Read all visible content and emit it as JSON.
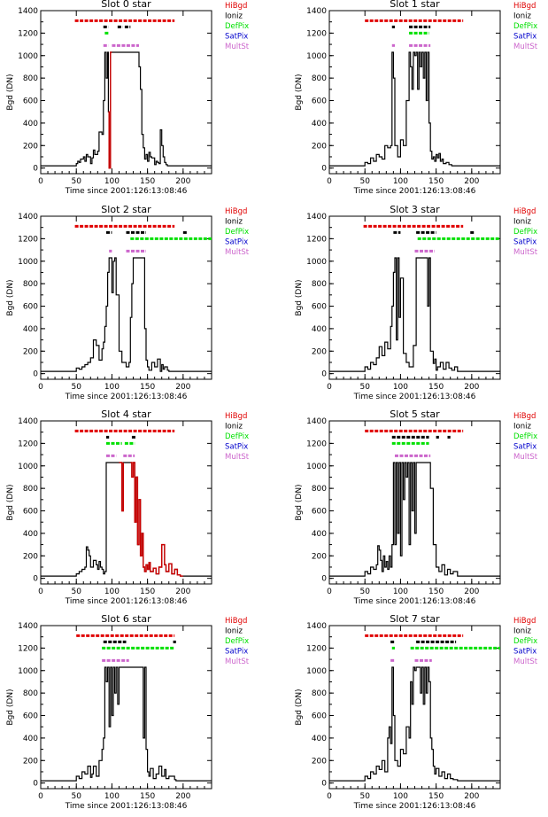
{
  "colors": {
    "HiBgd": "#e00000",
    "Ioniz": "#000000",
    "DefPix": "#00e000",
    "SatPix": "#0000cc",
    "MultSt": "#cc66cc",
    "trace": "#000000",
    "trace_flag": "#cc0000"
  },
  "legend": [
    "HiBgd",
    "Ioniz",
    "DefPix",
    "SatPix",
    "MultSt"
  ],
  "chart_data": [
    {
      "type": "line",
      "title": "Slot 0 star",
      "xlabel": "Time since 2001:126:13:08:46",
      "ylabel": "Bgd (DN)",
      "xlim": [
        0,
        240
      ],
      "ylim": [
        -50,
        1400
      ],
      "xticks": [
        0,
        50,
        100,
        150,
        200
      ],
      "yticks": [
        0,
        200,
        400,
        600,
        800,
        1000,
        1200,
        1400
      ],
      "x": [
        0,
        48,
        50,
        52,
        54,
        56,
        60,
        62,
        64,
        66,
        70,
        72,
        74,
        76,
        80,
        82,
        86,
        88,
        90,
        92,
        94,
        95,
        96,
        98,
        100,
        102,
        110,
        118,
        122,
        126,
        130,
        134,
        136,
        138,
        140,
        142,
        144,
        146,
        148,
        150,
        152,
        154,
        156,
        160,
        162,
        164,
        166,
        168,
        170,
        172,
        174,
        176,
        178,
        180,
        240
      ],
      "y": [
        20,
        20,
        40,
        60,
        50,
        80,
        100,
        60,
        120,
        100,
        40,
        90,
        160,
        120,
        150,
        320,
        300,
        600,
        1030,
        800,
        1030,
        500,
        0,
        1030,
        1030,
        1030,
        1030,
        1030,
        1030,
        1030,
        1030,
        1030,
        1030,
        900,
        700,
        300,
        180,
        80,
        120,
        60,
        140,
        100,
        90,
        30,
        60,
        50,
        40,
        340,
        200,
        100,
        50,
        30,
        20,
        20,
        20
      ],
      "flag_segments": [
        [
          95,
          100
        ]
      ],
      "flags": {
        "HiBgd": [
          [
            48,
            188
          ]
        ],
        "Ioniz": [
          [
            88,
            95
          ],
          [
            108,
            115
          ],
          [
            118,
            126
          ]
        ],
        "DefPix": [
          [
            90,
            95
          ]
        ],
        "SatPix": [],
        "MultSt": [
          [
            88,
            95
          ],
          [
            100,
            138
          ]
        ]
      }
    },
    {
      "type": "line",
      "title": "Slot 1 star",
      "xlabel": "Time since 2001:126:13:08:46",
      "ylabel": "Bgd (DN)",
      "xlim": [
        0,
        240
      ],
      "ylim": [
        -50,
        1400
      ],
      "xticks": [
        0,
        50,
        100,
        150,
        200
      ],
      "yticks": [
        0,
        200,
        400,
        600,
        800,
        1000,
        1200,
        1400
      ],
      "x": [
        0,
        48,
        50,
        54,
        58,
        62,
        66,
        70,
        74,
        78,
        82,
        86,
        88,
        90,
        92,
        96,
        100,
        104,
        108,
        112,
        114,
        116,
        118,
        120,
        122,
        124,
        126,
        128,
        130,
        132,
        134,
        136,
        138,
        140,
        142,
        144,
        146,
        148,
        150,
        152,
        154,
        156,
        158,
        160,
        164,
        168,
        172,
        176,
        240
      ],
      "y": [
        20,
        20,
        50,
        40,
        90,
        60,
        120,
        100,
        80,
        200,
        180,
        200,
        1030,
        800,
        200,
        100,
        250,
        200,
        600,
        1030,
        900,
        700,
        1030,
        1000,
        1030,
        700,
        1030,
        900,
        1030,
        800,
        1030,
        600,
        1030,
        400,
        150,
        80,
        100,
        60,
        120,
        90,
        130,
        60,
        80,
        40,
        50,
        30,
        20,
        20,
        20
      ],
      "flag_segments": [],
      "flags": {
        "HiBgd": [
          [
            50,
            188
          ]
        ],
        "Ioniz": [
          [
            88,
            92
          ],
          [
            112,
            142
          ]
        ],
        "DefPix": [
          [
            112,
            140
          ]
        ],
        "SatPix": [],
        "MultSt": [
          [
            88,
            92
          ],
          [
            112,
            142
          ]
        ]
      }
    },
    {
      "type": "line",
      "title": "Slot 2 star",
      "xlabel": "Time since 2001:126:13:08:46",
      "ylabel": "Bgd (DN)",
      "xlim": [
        0,
        240
      ],
      "ylim": [
        -50,
        1400
      ],
      "xticks": [
        0,
        50,
        100,
        150,
        200
      ],
      "yticks": [
        0,
        200,
        400,
        600,
        800,
        1000,
        1200,
        1400
      ],
      "x": [
        0,
        46,
        50,
        54,
        58,
        62,
        66,
        70,
        74,
        78,
        82,
        86,
        88,
        90,
        92,
        94,
        96,
        98,
        100,
        102,
        104,
        106,
        110,
        114,
        120,
        124,
        126,
        128,
        130,
        134,
        138,
        142,
        146,
        148,
        150,
        152,
        156,
        160,
        164,
        168,
        170,
        172,
        174,
        178,
        180,
        240
      ],
      "y": [
        20,
        20,
        50,
        40,
        60,
        80,
        100,
        140,
        300,
        250,
        120,
        220,
        280,
        420,
        600,
        900,
        1030,
        1030,
        720,
        1000,
        1030,
        700,
        200,
        100,
        60,
        100,
        500,
        800,
        1030,
        1030,
        1030,
        1030,
        400,
        120,
        60,
        30,
        100,
        60,
        130,
        20,
        80,
        40,
        60,
        30,
        20,
        20
      ],
      "flag_segments": [],
      "flags": {
        "HiBgd": [
          [
            48,
            188
          ]
        ],
        "Ioniz": [
          [
            92,
            100
          ],
          [
            120,
            148
          ],
          [
            200,
            205
          ]
        ],
        "DefPix": [
          [
            126,
            240
          ]
        ],
        "SatPix": [],
        "MultSt": [
          [
            96,
            100
          ],
          [
            120,
            148
          ]
        ]
      }
    },
    {
      "type": "line",
      "title": "Slot 3 star",
      "xlabel": "Time since 2001:126:13:08:46",
      "ylabel": "Bgd (DN)",
      "xlim": [
        0,
        240
      ],
      "ylim": [
        -50,
        1400
      ],
      "xticks": [
        0,
        50,
        100,
        150,
        200
      ],
      "yticks": [
        0,
        200,
        400,
        600,
        800,
        1000,
        1200,
        1400
      ],
      "x": [
        0,
        46,
        50,
        54,
        58,
        62,
        66,
        70,
        74,
        78,
        82,
        86,
        88,
        90,
        92,
        94,
        96,
        98,
        100,
        104,
        108,
        112,
        118,
        122,
        124,
        126,
        130,
        134,
        138,
        140,
        142,
        146,
        148,
        150,
        152,
        156,
        160,
        164,
        168,
        172,
        176,
        180,
        240
      ],
      "y": [
        20,
        20,
        60,
        40,
        100,
        80,
        140,
        240,
        160,
        280,
        220,
        420,
        600,
        900,
        1030,
        300,
        1030,
        500,
        850,
        180,
        100,
        60,
        250,
        1030,
        1030,
        1030,
        1030,
        1030,
        600,
        1030,
        200,
        90,
        130,
        30,
        60,
        100,
        40,
        100,
        50,
        30,
        60,
        20,
        20
      ],
      "flag_segments": [],
      "flags": {
        "HiBgd": [
          [
            48,
            188
          ]
        ],
        "Ioniz": [
          [
            90,
            100
          ],
          [
            122,
            150
          ],
          [
            198,
            203
          ]
        ],
        "DefPix": [
          [
            124,
            240
          ]
        ],
        "SatPix": [],
        "MultSt": [
          [
            120,
            148
          ]
        ]
      }
    },
    {
      "type": "line",
      "title": "Slot 4 star",
      "xlabel": "Time since 2001:126:13:08:46",
      "ylabel": "Bgd (DN)",
      "xlim": [
        0,
        240
      ],
      "ylim": [
        -50,
        1400
      ],
      "xticks": [
        0,
        50,
        100,
        150,
        200
      ],
      "yticks": [
        0,
        200,
        400,
        600,
        800,
        1000,
        1200,
        1400
      ],
      "x": [
        0,
        48,
        50,
        54,
        58,
        62,
        64,
        66,
        68,
        70,
        74,
        78,
        80,
        82,
        84,
        86,
        88,
        90,
        92,
        110,
        112,
        114,
        116,
        120,
        124,
        126,
        128,
        130,
        132,
        134,
        136,
        138,
        140,
        142,
        144,
        146,
        148,
        150,
        152,
        154,
        158,
        162,
        166,
        170,
        174,
        176,
        180,
        184,
        188,
        192,
        196,
        200,
        240
      ],
      "y": [
        20,
        20,
        40,
        60,
        80,
        100,
        280,
        250,
        200,
        100,
        160,
        120,
        80,
        150,
        100,
        80,
        40,
        60,
        1030,
        1030,
        1030,
        600,
        1030,
        1030,
        1030,
        1030,
        900,
        1030,
        500,
        900,
        300,
        700,
        200,
        400,
        100,
        60,
        120,
        80,
        140,
        60,
        90,
        40,
        100,
        300,
        120,
        60,
        130,
        40,
        80,
        30,
        20,
        20,
        20
      ],
      "flag_segments": [
        [
          110,
          118
        ],
        [
          126,
          200
        ]
      ],
      "flags": {
        "HiBgd": [
          [
            48,
            188
          ]
        ],
        "Ioniz": [
          [
            92,
            96
          ],
          [
            128,
            134
          ]
        ],
        "DefPix": [
          [
            92,
            114
          ],
          [
            118,
            132
          ]
        ],
        "SatPix": [],
        "MultSt": [
          [
            92,
            106
          ],
          [
            116,
            132
          ]
        ]
      }
    },
    {
      "type": "line",
      "title": "Slot 5 star",
      "xlabel": "Time since 2001:126:13:08:46",
      "ylabel": "Bgd (DN)",
      "xlim": [
        0,
        240
      ],
      "ylim": [
        -50,
        1400
      ],
      "xticks": [
        0,
        50,
        100,
        150,
        200
      ],
      "yticks": [
        0,
        200,
        400,
        600,
        800,
        1000,
        1200,
        1400
      ],
      "x": [
        0,
        48,
        50,
        54,
        58,
        62,
        66,
        68,
        70,
        72,
        74,
        76,
        78,
        80,
        82,
        84,
        86,
        88,
        90,
        92,
        94,
        96,
        98,
        100,
        102,
        104,
        106,
        108,
        110,
        112,
        114,
        116,
        118,
        120,
        122,
        126,
        130,
        134,
        138,
        140,
        142,
        146,
        150,
        154,
        158,
        162,
        166,
        170,
        174,
        180,
        240
      ],
      "y": [
        20,
        20,
        60,
        40,
        100,
        80,
        120,
        290,
        250,
        160,
        60,
        200,
        100,
        150,
        80,
        200,
        100,
        300,
        1030,
        300,
        1030,
        400,
        1030,
        200,
        1030,
        700,
        1030,
        900,
        1030,
        300,
        1030,
        600,
        1030,
        400,
        1030,
        1030,
        1030,
        1030,
        1030,
        1030,
        800,
        300,
        100,
        60,
        120,
        30,
        80,
        40,
        60,
        20,
        20
      ],
      "flag_segments": [],
      "flags": {
        "HiBgd": [
          [
            50,
            188
          ]
        ],
        "Ioniz": [
          [
            88,
            140
          ],
          [
            150,
            154
          ],
          [
            166,
            170
          ]
        ],
        "DefPix": [
          [
            88,
            140
          ]
        ],
        "SatPix": [],
        "MultSt": [
          [
            92,
            142
          ]
        ]
      }
    },
    {
      "type": "line",
      "title": "Slot 6 star",
      "xlabel": "Time since 2001:126:13:08:46",
      "ylabel": "Bgd (DN)",
      "xlim": [
        0,
        240
      ],
      "ylim": [
        -50,
        1400
      ],
      "xticks": [
        0,
        50,
        100,
        150,
        200
      ],
      "yticks": [
        0,
        200,
        400,
        600,
        800,
        1000,
        1200,
        1400
      ],
      "x": [
        0,
        48,
        50,
        54,
        58,
        62,
        66,
        70,
        72,
        74,
        78,
        82,
        86,
        88,
        90,
        92,
        94,
        96,
        98,
        100,
        102,
        104,
        106,
        108,
        110,
        112,
        116,
        120,
        126,
        132,
        138,
        142,
        144,
        146,
        148,
        150,
        152,
        154,
        158,
        162,
        166,
        170,
        174,
        176,
        180,
        188,
        190,
        240
      ],
      "y": [
        20,
        20,
        60,
        40,
        100,
        80,
        150,
        50,
        80,
        150,
        60,
        200,
        300,
        400,
        1030,
        900,
        1030,
        500,
        1030,
        600,
        1030,
        800,
        1030,
        700,
        1030,
        1030,
        1030,
        1030,
        1030,
        1030,
        1030,
        1030,
        400,
        1030,
        300,
        100,
        60,
        130,
        40,
        80,
        150,
        60,
        120,
        40,
        60,
        30,
        20,
        20
      ],
      "flag_segments": [],
      "flags": {
        "HiBgd": [
          [
            50,
            188
          ]
        ],
        "Ioniz": [
          [
            88,
            120
          ],
          [
            186,
            190
          ]
        ],
        "DefPix": [
          [
            86,
            188
          ]
        ],
        "SatPix": [],
        "MultSt": [
          [
            86,
            124
          ]
        ]
      }
    },
    {
      "type": "line",
      "title": "Slot 7 star",
      "xlabel": "Time since 2001:126:13:08:46",
      "ylabel": "Bgd (DN)",
      "xlim": [
        0,
        240
      ],
      "ylim": [
        -50,
        1400
      ],
      "xticks": [
        0,
        50,
        100,
        150,
        200
      ],
      "yticks": [
        0,
        200,
        400,
        600,
        800,
        1000,
        1200,
        1400
      ],
      "x": [
        0,
        48,
        50,
        54,
        58,
        62,
        66,
        70,
        74,
        78,
        82,
        84,
        86,
        88,
        90,
        92,
        96,
        100,
        104,
        108,
        112,
        114,
        116,
        118,
        120,
        122,
        124,
        126,
        128,
        130,
        132,
        134,
        136,
        138,
        140,
        142,
        144,
        146,
        148,
        150,
        154,
        158,
        162,
        166,
        170,
        174,
        180,
        240
      ],
      "y": [
        20,
        20,
        60,
        40,
        100,
        80,
        150,
        120,
        200,
        100,
        400,
        500,
        350,
        1030,
        600,
        200,
        150,
        300,
        260,
        500,
        400,
        900,
        700,
        1030,
        1000,
        1030,
        1030,
        1030,
        800,
        1030,
        700,
        1030,
        800,
        1030,
        900,
        400,
        300,
        150,
        80,
        130,
        60,
        100,
        40,
        80,
        40,
        30,
        20,
        20
      ],
      "flag_segments": [],
      "flags": {
        "HiBgd": [
          [
            50,
            188
          ]
        ],
        "Ioniz": [
          [
            86,
            92
          ],
          [
            122,
            178
          ]
        ],
        "DefPix": [
          [
            88,
            92
          ],
          [
            114,
            240
          ]
        ],
        "SatPix": [],
        "MultSt": [
          [
            86,
            92
          ],
          [
            120,
            144
          ]
        ]
      }
    }
  ]
}
